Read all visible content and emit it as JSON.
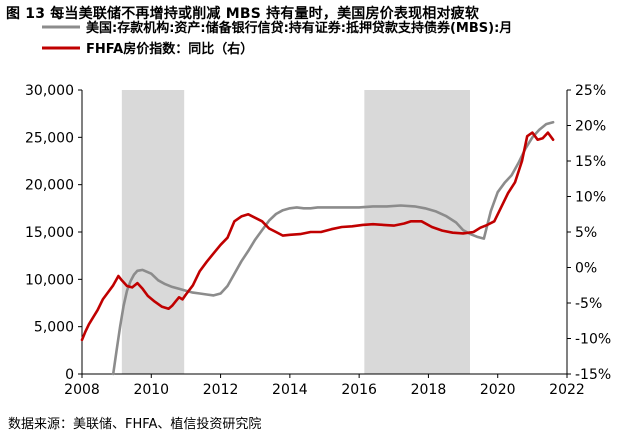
{
  "title": "图 13 每当美联储不再增持或削减 MBS 持有量时，美国房价表现相对疲软",
  "source": "数据来源：美联储、FHFA、植信投资研究院",
  "chart_data": {
    "type": "line",
    "x_ticks": [
      "2008",
      "2010",
      "2012",
      "2014",
      "2016",
      "2018",
      "2020",
      "2022"
    ],
    "xlim": [
      2008,
      2022
    ],
    "y_left": {
      "ticks": [
        "0",
        "5,000",
        "10,000",
        "15,000",
        "20,000",
        "25,000",
        "30,000"
      ],
      "ylim": [
        0,
        30000
      ]
    },
    "y_right": {
      "ticks": [
        "-15%",
        "-10%",
        "-5%",
        "0%",
        "5%",
        "10%",
        "15%",
        "20%",
        "25%"
      ],
      "ylim": [
        -15,
        25
      ]
    },
    "shaded_periods": [
      [
        2009.15,
        2010.95
      ],
      [
        2016.15,
        2019.2
      ]
    ],
    "series": [
      {
        "name": "美国:存款机构:资产:储备银行信贷:持有证券:抵押贷款支持债券(MBS):月",
        "axis": "left",
        "color": "#8c8c8c",
        "x": [
          2008.9,
          2009.0,
          2009.1,
          2009.2,
          2009.3,
          2009.4,
          2009.5,
          2009.6,
          2009.75,
          2010.0,
          2010.2,
          2010.4,
          2010.6,
          2010.8,
          2011.0,
          2011.2,
          2011.4,
          2011.6,
          2011.8,
          2012.0,
          2012.2,
          2012.4,
          2012.6,
          2012.8,
          2013.0,
          2013.2,
          2013.4,
          2013.6,
          2013.8,
          2014.0,
          2014.2,
          2014.4,
          2014.6,
          2014.8,
          2015.0,
          2015.3,
          2015.6,
          2016.0,
          2016.4,
          2016.8,
          2017.2,
          2017.6,
          2017.9,
          2018.2,
          2018.5,
          2018.8,
          2019.0,
          2019.2,
          2019.4,
          2019.6,
          2019.8,
          2020.0,
          2020.2,
          2020.4,
          2020.6,
          2020.8,
          2021.0,
          2021.2,
          2021.4,
          2021.6
        ],
        "values": [
          0,
          2500,
          5000,
          7200,
          8800,
          9800,
          10500,
          10900,
          11000,
          10600,
          9900,
          9500,
          9200,
          9000,
          8800,
          8600,
          8500,
          8400,
          8300,
          8500,
          9300,
          10600,
          11900,
          13000,
          14200,
          15200,
          16200,
          16900,
          17300,
          17500,
          17600,
          17500,
          17500,
          17600,
          17600,
          17600,
          17600,
          17600,
          17700,
          17700,
          17800,
          17700,
          17500,
          17200,
          16700,
          16000,
          15200,
          14800,
          14500,
          14300,
          17200,
          19200,
          20200,
          21000,
          22300,
          23800,
          25000,
          25800,
          26400,
          26600
        ]
      },
      {
        "name": "FHFA房价指数：同比（右）",
        "axis": "right",
        "color": "#c00000",
        "x": [
          2008.0,
          2008.1,
          2008.2,
          2008.3,
          2008.45,
          2008.6,
          2008.75,
          2008.9,
          2009.05,
          2009.15,
          2009.3,
          2009.45,
          2009.6,
          2009.75,
          2009.9,
          2010.1,
          2010.3,
          2010.5,
          2010.6,
          2010.7,
          2010.8,
          2010.9,
          2011.0,
          2011.2,
          2011.4,
          2011.6,
          2011.8,
          2012.0,
          2012.2,
          2012.4,
          2012.6,
          2012.8,
          2013.0,
          2013.2,
          2013.4,
          2013.6,
          2013.8,
          2014.0,
          2014.3,
          2014.6,
          2014.9,
          2015.2,
          2015.5,
          2015.8,
          2016.1,
          2016.4,
          2016.7,
          2017.0,
          2017.3,
          2017.5,
          2017.8,
          2018.1,
          2018.4,
          2018.7,
          2019.0,
          2019.3,
          2019.5,
          2019.7,
          2019.9,
          2020.1,
          2020.3,
          2020.5,
          2020.7,
          2020.85,
          2021.0,
          2021.15,
          2021.3,
          2021.45,
          2021.6
        ],
        "values": [
          -10.2,
          -9.0,
          -8.0,
          -7.2,
          -6.0,
          -4.5,
          -3.5,
          -2.5,
          -1.2,
          -1.8,
          -2.6,
          -2.8,
          -2.2,
          -3.0,
          -4.0,
          -4.8,
          -5.5,
          -5.8,
          -5.4,
          -4.8,
          -4.2,
          -4.5,
          -3.8,
          -2.5,
          -0.5,
          0.8,
          2.0,
          3.2,
          4.2,
          6.5,
          7.2,
          7.5,
          7.0,
          6.5,
          5.5,
          5.0,
          4.5,
          4.6,
          4.7,
          5.0,
          5.0,
          5.4,
          5.7,
          5.8,
          6.0,
          6.1,
          6.0,
          5.9,
          6.2,
          6.5,
          6.5,
          5.7,
          5.2,
          4.9,
          4.8,
          5.0,
          5.6,
          6.0,
          6.5,
          8.5,
          10.5,
          12.0,
          15.0,
          18.5,
          19.0,
          18.0,
          18.2,
          19.0,
          18.0
        ]
      }
    ]
  }
}
